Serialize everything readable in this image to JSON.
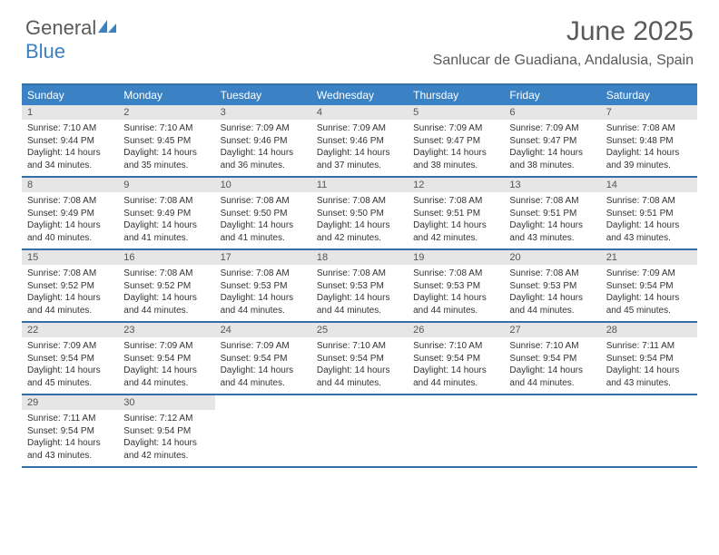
{
  "logo": {
    "text1": "General",
    "text2": "Blue"
  },
  "title": "June 2025",
  "location": "Sanlucar de Guadiana, Andalusia, Spain",
  "colors": {
    "header_bg": "#3b82c4",
    "header_border": "#3470a8",
    "daynum_bg": "#e6e6e6",
    "text": "#5a5a5a"
  },
  "weekdays": [
    "Sunday",
    "Monday",
    "Tuesday",
    "Wednesday",
    "Thursday",
    "Friday",
    "Saturday"
  ],
  "weeks": [
    [
      {
        "n": "1",
        "sr": "7:10 AM",
        "ss": "9:44 PM",
        "dl": "14 hours and 34 minutes."
      },
      {
        "n": "2",
        "sr": "7:10 AM",
        "ss": "9:45 PM",
        "dl": "14 hours and 35 minutes."
      },
      {
        "n": "3",
        "sr": "7:09 AM",
        "ss": "9:46 PM",
        "dl": "14 hours and 36 minutes."
      },
      {
        "n": "4",
        "sr": "7:09 AM",
        "ss": "9:46 PM",
        "dl": "14 hours and 37 minutes."
      },
      {
        "n": "5",
        "sr": "7:09 AM",
        "ss": "9:47 PM",
        "dl": "14 hours and 38 minutes."
      },
      {
        "n": "6",
        "sr": "7:09 AM",
        "ss": "9:47 PM",
        "dl": "14 hours and 38 minutes."
      },
      {
        "n": "7",
        "sr": "7:08 AM",
        "ss": "9:48 PM",
        "dl": "14 hours and 39 minutes."
      }
    ],
    [
      {
        "n": "8",
        "sr": "7:08 AM",
        "ss": "9:49 PM",
        "dl": "14 hours and 40 minutes."
      },
      {
        "n": "9",
        "sr": "7:08 AM",
        "ss": "9:49 PM",
        "dl": "14 hours and 41 minutes."
      },
      {
        "n": "10",
        "sr": "7:08 AM",
        "ss": "9:50 PM",
        "dl": "14 hours and 41 minutes."
      },
      {
        "n": "11",
        "sr": "7:08 AM",
        "ss": "9:50 PM",
        "dl": "14 hours and 42 minutes."
      },
      {
        "n": "12",
        "sr": "7:08 AM",
        "ss": "9:51 PM",
        "dl": "14 hours and 42 minutes."
      },
      {
        "n": "13",
        "sr": "7:08 AM",
        "ss": "9:51 PM",
        "dl": "14 hours and 43 minutes."
      },
      {
        "n": "14",
        "sr": "7:08 AM",
        "ss": "9:51 PM",
        "dl": "14 hours and 43 minutes."
      }
    ],
    [
      {
        "n": "15",
        "sr": "7:08 AM",
        "ss": "9:52 PM",
        "dl": "14 hours and 44 minutes."
      },
      {
        "n": "16",
        "sr": "7:08 AM",
        "ss": "9:52 PM",
        "dl": "14 hours and 44 minutes."
      },
      {
        "n": "17",
        "sr": "7:08 AM",
        "ss": "9:53 PM",
        "dl": "14 hours and 44 minutes."
      },
      {
        "n": "18",
        "sr": "7:08 AM",
        "ss": "9:53 PM",
        "dl": "14 hours and 44 minutes."
      },
      {
        "n": "19",
        "sr": "7:08 AM",
        "ss": "9:53 PM",
        "dl": "14 hours and 44 minutes."
      },
      {
        "n": "20",
        "sr": "7:08 AM",
        "ss": "9:53 PM",
        "dl": "14 hours and 44 minutes."
      },
      {
        "n": "21",
        "sr": "7:09 AM",
        "ss": "9:54 PM",
        "dl": "14 hours and 45 minutes."
      }
    ],
    [
      {
        "n": "22",
        "sr": "7:09 AM",
        "ss": "9:54 PM",
        "dl": "14 hours and 45 minutes."
      },
      {
        "n": "23",
        "sr": "7:09 AM",
        "ss": "9:54 PM",
        "dl": "14 hours and 44 minutes."
      },
      {
        "n": "24",
        "sr": "7:09 AM",
        "ss": "9:54 PM",
        "dl": "14 hours and 44 minutes."
      },
      {
        "n": "25",
        "sr": "7:10 AM",
        "ss": "9:54 PM",
        "dl": "14 hours and 44 minutes."
      },
      {
        "n": "26",
        "sr": "7:10 AM",
        "ss": "9:54 PM",
        "dl": "14 hours and 44 minutes."
      },
      {
        "n": "27",
        "sr": "7:10 AM",
        "ss": "9:54 PM",
        "dl": "14 hours and 44 minutes."
      },
      {
        "n": "28",
        "sr": "7:11 AM",
        "ss": "9:54 PM",
        "dl": "14 hours and 43 minutes."
      }
    ],
    [
      {
        "n": "29",
        "sr": "7:11 AM",
        "ss": "9:54 PM",
        "dl": "14 hours and 43 minutes."
      },
      {
        "n": "30",
        "sr": "7:12 AM",
        "ss": "9:54 PM",
        "dl": "14 hours and 42 minutes."
      },
      null,
      null,
      null,
      null,
      null
    ]
  ],
  "labels": {
    "sunrise": "Sunrise: ",
    "sunset": "Sunset: ",
    "daylight": "Daylight: "
  }
}
